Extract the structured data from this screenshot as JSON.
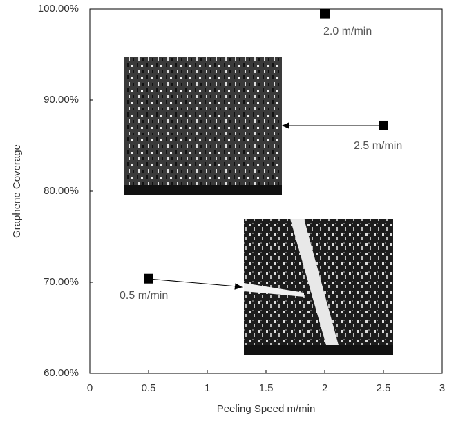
{
  "chart_data": {
    "type": "scatter",
    "x_label": "Peeling Speed m/min",
    "y_label": "Graphene Coverage",
    "x": [
      0.5,
      2.0,
      2.5
    ],
    "values": [
      70.4,
      99.5,
      87.2
    ],
    "labels": [
      "0.5 m/min",
      "2.0 m/min",
      "2.5 m/min"
    ],
    "color": "#000000",
    "xlim": [
      0,
      3
    ],
    "xticks": [
      0,
      0.5,
      1,
      1.5,
      2,
      2.5,
      3
    ],
    "ylim": [
      60,
      100
    ],
    "yticks": [
      {
        "value": 60,
        "label": "60.00%"
      },
      {
        "value": 70,
        "label": "70.00%"
      },
      {
        "value": 80,
        "label": "80.00%"
      },
      {
        "value": 90,
        "label": "90.00%"
      },
      {
        "value": 100,
        "label": "100.00%"
      }
    ],
    "grid": false
  }
}
